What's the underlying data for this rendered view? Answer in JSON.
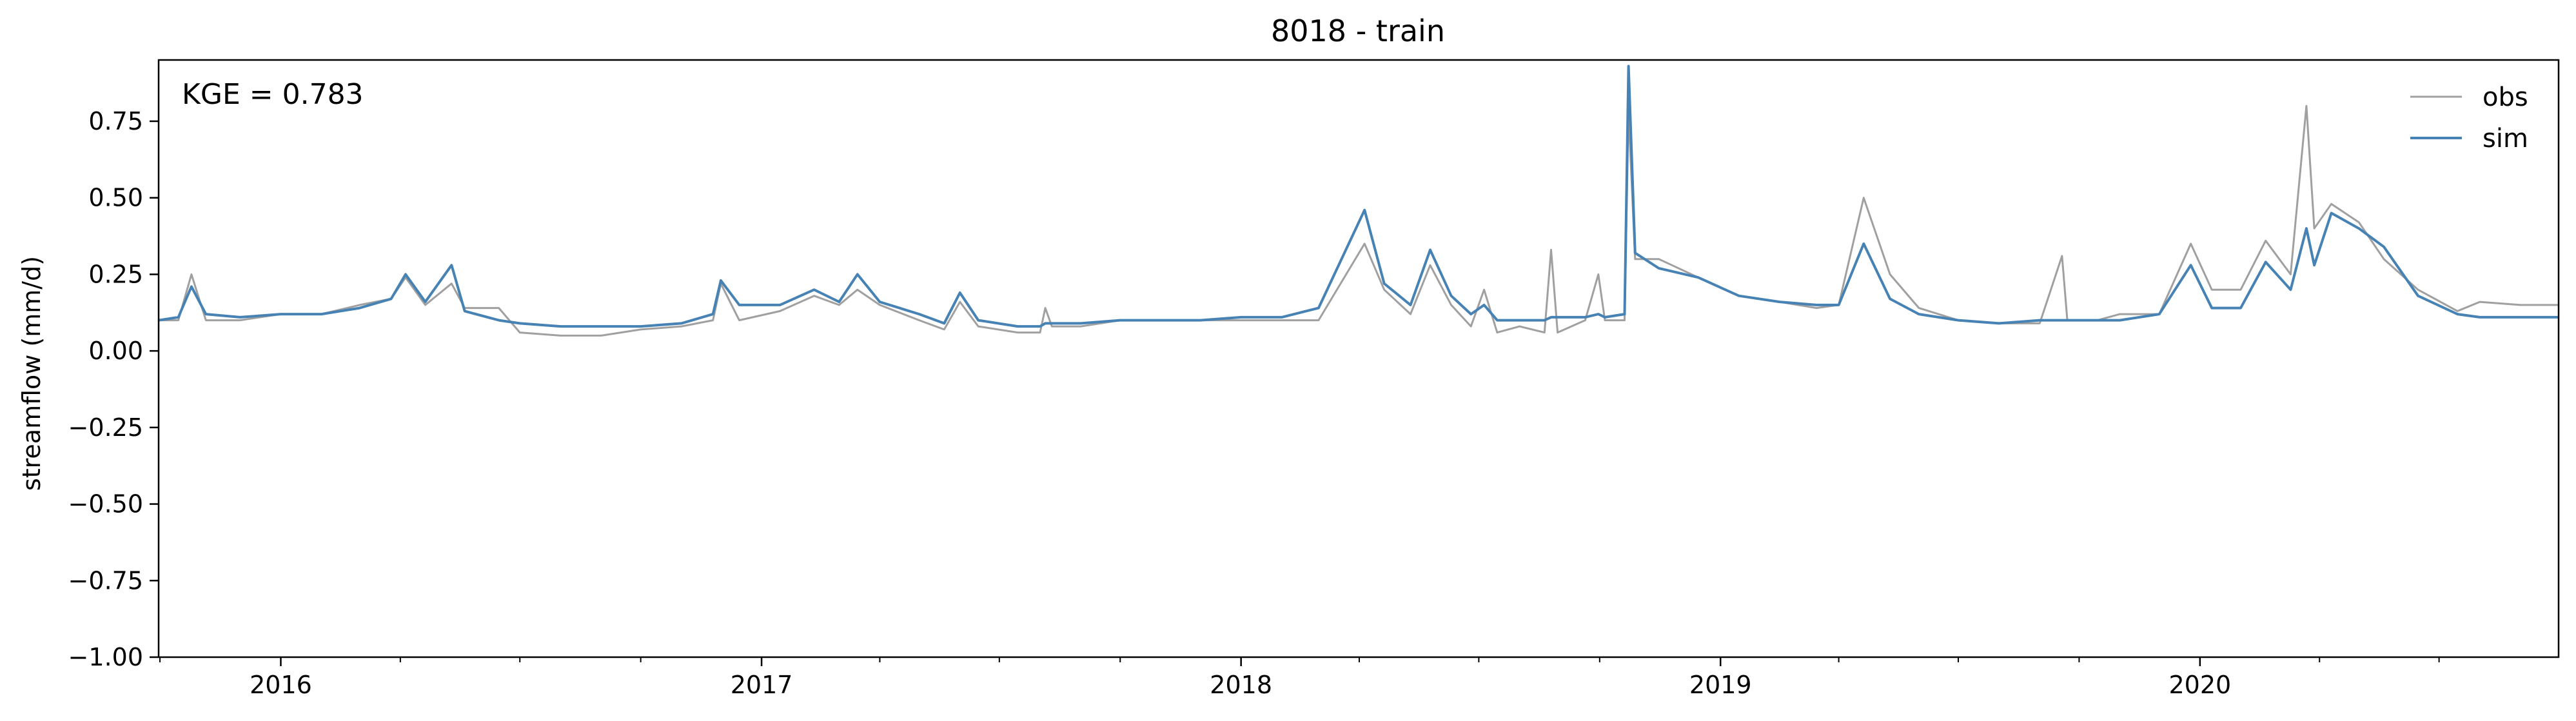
{
  "chart_data": {
    "type": "line",
    "title": "8018 - train",
    "xlabel": "",
    "ylabel": "streamflow (mm/d)",
    "annotation": "KGE = 0.783",
    "xlim": [
      "2015-09-30",
      "2020-09-30"
    ],
    "ylim": [
      -1.0,
      0.95
    ],
    "grid": false,
    "legend": "top-right",
    "x_ticks": [
      "2016",
      "2017",
      "2018",
      "2019",
      "2020"
    ],
    "y_ticks": [
      "0.75",
      "0.50",
      "0.25",
      "0.00",
      "−0.25",
      "−0.50",
      "−0.75",
      "−1.00"
    ],
    "series": [
      {
        "name": "obs",
        "color": "#a0a0a0",
        "points": [
          [
            "2015-09-30",
            0.1
          ],
          [
            "2015-10-15",
            0.1
          ],
          [
            "2015-10-25",
            0.25
          ],
          [
            "2015-11-05",
            0.1
          ],
          [
            "2015-12-01",
            0.1
          ],
          [
            "2016-01-01",
            0.12
          ],
          [
            "2016-02-01",
            0.12
          ],
          [
            "2016-03-01",
            0.15
          ],
          [
            "2016-03-25",
            0.17
          ],
          [
            "2016-04-05",
            0.24
          ],
          [
            "2016-04-20",
            0.15
          ],
          [
            "2016-05-10",
            0.22
          ],
          [
            "2016-05-20",
            0.14
          ],
          [
            "2016-06-15",
            0.14
          ],
          [
            "2016-07-01",
            0.06
          ],
          [
            "2016-08-01",
            0.05
          ],
          [
            "2016-09-01",
            0.05
          ],
          [
            "2016-10-01",
            0.07
          ],
          [
            "2016-11-01",
            0.08
          ],
          [
            "2016-11-25",
            0.1
          ],
          [
            "2016-12-01",
            0.22
          ],
          [
            "2016-12-15",
            0.1
          ],
          [
            "2017-01-15",
            0.13
          ],
          [
            "2017-02-10",
            0.18
          ],
          [
            "2017-03-01",
            0.15
          ],
          [
            "2017-03-15",
            0.2
          ],
          [
            "2017-04-01",
            0.15
          ],
          [
            "2017-05-01",
            0.1
          ],
          [
            "2017-05-20",
            0.07
          ],
          [
            "2017-06-01",
            0.16
          ],
          [
            "2017-06-15",
            0.08
          ],
          [
            "2017-07-15",
            0.06
          ],
          [
            "2017-08-01",
            0.06
          ],
          [
            "2017-08-05",
            0.14
          ],
          [
            "2017-08-10",
            0.08
          ],
          [
            "2017-09-01",
            0.08
          ],
          [
            "2017-10-01",
            0.1
          ],
          [
            "2017-12-01",
            0.1
          ],
          [
            "2018-01-01",
            0.1
          ],
          [
            "2018-02-01",
            0.1
          ],
          [
            "2018-03-01",
            0.1
          ],
          [
            "2018-04-05",
            0.35
          ],
          [
            "2018-04-20",
            0.2
          ],
          [
            "2018-05-10",
            0.12
          ],
          [
            "2018-05-25",
            0.28
          ],
          [
            "2018-06-10",
            0.15
          ],
          [
            "2018-06-25",
            0.08
          ],
          [
            "2018-07-05",
            0.2
          ],
          [
            "2018-07-15",
            0.06
          ],
          [
            "2018-08-01",
            0.08
          ],
          [
            "2018-08-20",
            0.06
          ],
          [
            "2018-08-25",
            0.33
          ],
          [
            "2018-08-30",
            0.06
          ],
          [
            "2018-09-20",
            0.1
          ],
          [
            "2018-09-30",
            0.25
          ],
          [
            "2018-10-05",
            0.1
          ],
          [
            "2018-10-20",
            0.1
          ],
          [
            "2018-10-23",
            0.78
          ],
          [
            "2018-10-28",
            0.3
          ],
          [
            "2018-11-15",
            0.3
          ],
          [
            "2018-12-15",
            0.24
          ],
          [
            "2019-01-15",
            0.18
          ],
          [
            "2019-02-15",
            0.16
          ],
          [
            "2019-03-15",
            0.14
          ],
          [
            "2019-04-01",
            0.15
          ],
          [
            "2019-04-20",
            0.5
          ],
          [
            "2019-05-10",
            0.25
          ],
          [
            "2019-06-01",
            0.14
          ],
          [
            "2019-07-01",
            0.1
          ],
          [
            "2019-08-01",
            0.09
          ],
          [
            "2019-09-01",
            0.09
          ],
          [
            "2019-09-18",
            0.31
          ],
          [
            "2019-09-22",
            0.1
          ],
          [
            "2019-10-15",
            0.1
          ],
          [
            "2019-11-01",
            0.12
          ],
          [
            "2019-12-01",
            0.12
          ],
          [
            "2019-12-25",
            0.35
          ],
          [
            "2020-01-10",
            0.2
          ],
          [
            "2020-02-01",
            0.2
          ],
          [
            "2020-02-20",
            0.36
          ],
          [
            "2020-03-10",
            0.25
          ],
          [
            "2020-03-22",
            0.8
          ],
          [
            "2020-03-28",
            0.4
          ],
          [
            "2020-04-10",
            0.48
          ],
          [
            "2020-05-01",
            0.42
          ],
          [
            "2020-05-20",
            0.3
          ],
          [
            "2020-06-15",
            0.2
          ],
          [
            "2020-07-15",
            0.13
          ],
          [
            "2020-08-01",
            0.16
          ],
          [
            "2020-09-01",
            0.15
          ],
          [
            "2020-09-30",
            0.15
          ]
        ]
      },
      {
        "name": "sim",
        "color": "#4682b4",
        "points": [
          [
            "2015-09-30",
            0.1
          ],
          [
            "2015-10-15",
            0.11
          ],
          [
            "2015-10-25",
            0.21
          ],
          [
            "2015-11-05",
            0.12
          ],
          [
            "2015-12-01",
            0.11
          ],
          [
            "2016-01-01",
            0.12
          ],
          [
            "2016-02-01",
            0.12
          ],
          [
            "2016-03-01",
            0.14
          ],
          [
            "2016-03-25",
            0.17
          ],
          [
            "2016-04-05",
            0.25
          ],
          [
            "2016-04-20",
            0.16
          ],
          [
            "2016-05-10",
            0.28
          ],
          [
            "2016-05-20",
            0.13
          ],
          [
            "2016-06-15",
            0.1
          ],
          [
            "2016-07-01",
            0.09
          ],
          [
            "2016-08-01",
            0.08
          ],
          [
            "2016-09-01",
            0.08
          ],
          [
            "2016-10-01",
            0.08
          ],
          [
            "2016-11-01",
            0.09
          ],
          [
            "2016-11-25",
            0.12
          ],
          [
            "2016-12-01",
            0.23
          ],
          [
            "2016-12-15",
            0.15
          ],
          [
            "2017-01-15",
            0.15
          ],
          [
            "2017-02-10",
            0.2
          ],
          [
            "2017-03-01",
            0.16
          ],
          [
            "2017-03-15",
            0.25
          ],
          [
            "2017-04-01",
            0.16
          ],
          [
            "2017-05-01",
            0.12
          ],
          [
            "2017-05-20",
            0.09
          ],
          [
            "2017-06-01",
            0.19
          ],
          [
            "2017-06-15",
            0.1
          ],
          [
            "2017-07-15",
            0.08
          ],
          [
            "2017-08-01",
            0.08
          ],
          [
            "2017-08-05",
            0.09
          ],
          [
            "2017-08-10",
            0.09
          ],
          [
            "2017-09-01",
            0.09
          ],
          [
            "2017-10-01",
            0.1
          ],
          [
            "2017-12-01",
            0.1
          ],
          [
            "2018-01-01",
            0.11
          ],
          [
            "2018-02-01",
            0.11
          ],
          [
            "2018-03-01",
            0.14
          ],
          [
            "2018-04-05",
            0.46
          ],
          [
            "2018-04-20",
            0.22
          ],
          [
            "2018-05-10",
            0.15
          ],
          [
            "2018-05-25",
            0.33
          ],
          [
            "2018-06-10",
            0.18
          ],
          [
            "2018-06-25",
            0.12
          ],
          [
            "2018-07-05",
            0.15
          ],
          [
            "2018-07-15",
            0.1
          ],
          [
            "2018-08-01",
            0.1
          ],
          [
            "2018-08-20",
            0.1
          ],
          [
            "2018-08-25",
            0.11
          ],
          [
            "2018-08-30",
            0.11
          ],
          [
            "2018-09-20",
            0.11
          ],
          [
            "2018-09-30",
            0.12
          ],
          [
            "2018-10-05",
            0.11
          ],
          [
            "2018-10-20",
            0.12
          ],
          [
            "2018-10-23",
            0.93
          ],
          [
            "2018-10-28",
            0.32
          ],
          [
            "2018-11-15",
            0.27
          ],
          [
            "2018-12-15",
            0.24
          ],
          [
            "2019-01-15",
            0.18
          ],
          [
            "2019-02-15",
            0.16
          ],
          [
            "2019-03-15",
            0.15
          ],
          [
            "2019-04-01",
            0.15
          ],
          [
            "2019-04-20",
            0.35
          ],
          [
            "2019-05-10",
            0.17
          ],
          [
            "2019-06-01",
            0.12
          ],
          [
            "2019-07-01",
            0.1
          ],
          [
            "2019-08-01",
            0.09
          ],
          [
            "2019-09-01",
            0.1
          ],
          [
            "2019-09-18",
            0.1
          ],
          [
            "2019-09-22",
            0.1
          ],
          [
            "2019-10-15",
            0.1
          ],
          [
            "2019-11-01",
            0.1
          ],
          [
            "2019-12-01",
            0.12
          ],
          [
            "2019-12-25",
            0.28
          ],
          [
            "2020-01-10",
            0.14
          ],
          [
            "2020-02-01",
            0.14
          ],
          [
            "2020-02-20",
            0.29
          ],
          [
            "2020-03-10",
            0.2
          ],
          [
            "2020-03-22",
            0.4
          ],
          [
            "2020-03-28",
            0.28
          ],
          [
            "2020-04-10",
            0.45
          ],
          [
            "2020-05-01",
            0.4
          ],
          [
            "2020-05-20",
            0.34
          ],
          [
            "2020-06-15",
            0.18
          ],
          [
            "2020-07-15",
            0.12
          ],
          [
            "2020-08-01",
            0.11
          ],
          [
            "2020-09-01",
            0.11
          ],
          [
            "2020-09-30",
            0.11
          ]
        ]
      }
    ]
  }
}
